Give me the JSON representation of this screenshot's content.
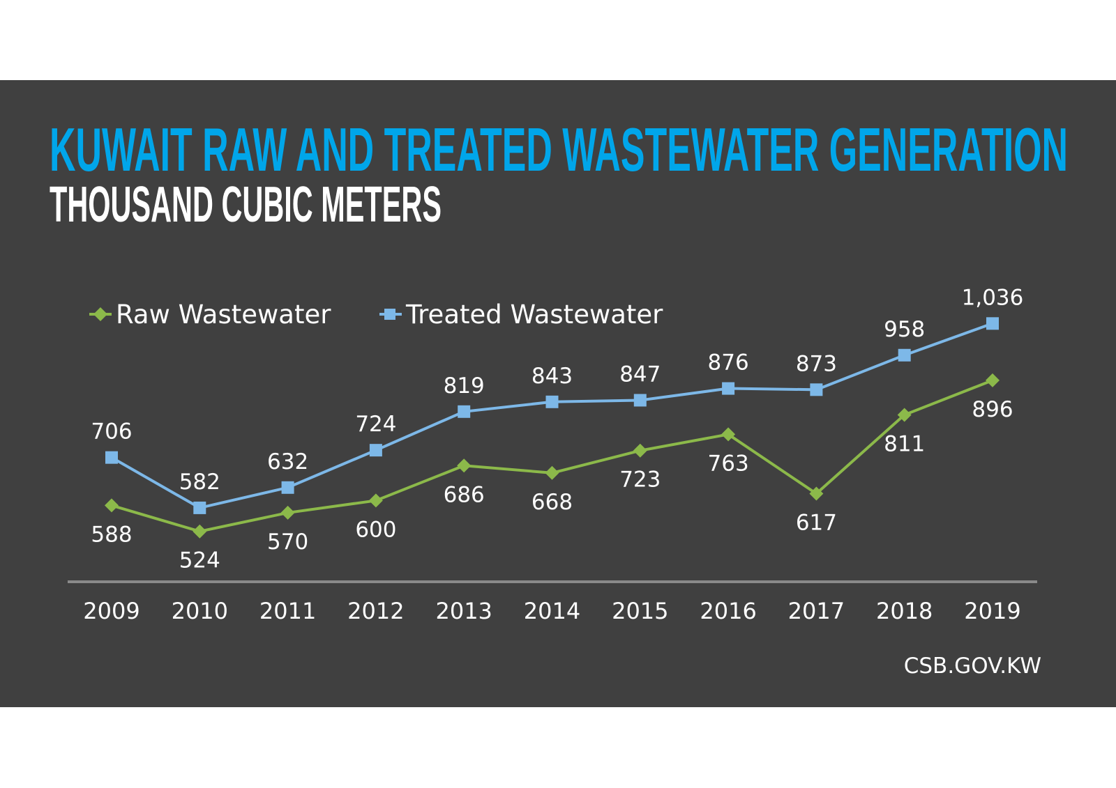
{
  "chart_data": {
    "type": "line",
    "title": "KUWAIT RAW AND TREATED WASTEWATER GENERATION",
    "subtitle": "THOUSAND CUBIC METERS",
    "categories": [
      "2009",
      "2010",
      "2011",
      "2012",
      "2013",
      "2014",
      "2015",
      "2016",
      "2017",
      "2018",
      "2019"
    ],
    "series": [
      {
        "name": "Raw Wastewater",
        "color": "#8cb94a",
        "marker": "diamond",
        "values": [
          588,
          524,
          570,
          600,
          686,
          668,
          723,
          763,
          617,
          811,
          896
        ],
        "labels": [
          "588",
          "524",
          "570",
          "600",
          "686",
          "668",
          "723",
          "763",
          "617",
          "811",
          "896"
        ]
      },
      {
        "name": "Treated Wastewater",
        "color": "#7db8e8",
        "marker": "square",
        "values": [
          706,
          582,
          632,
          724,
          819,
          843,
          847,
          876,
          873,
          958,
          1036
        ],
        "labels": [
          "706",
          "582",
          "632",
          "724",
          "819",
          "843",
          "847",
          "876",
          "873",
          "958",
          "1,036"
        ]
      }
    ],
    "ylim": [
      400,
      1100
    ],
    "grid": false,
    "legend": "top-left",
    "source": "CSB.GOV.KW",
    "colors": {
      "background": "#404040",
      "title": "#00a6ea",
      "text": "#ffffff",
      "axis": "#8a8a8a"
    }
  }
}
